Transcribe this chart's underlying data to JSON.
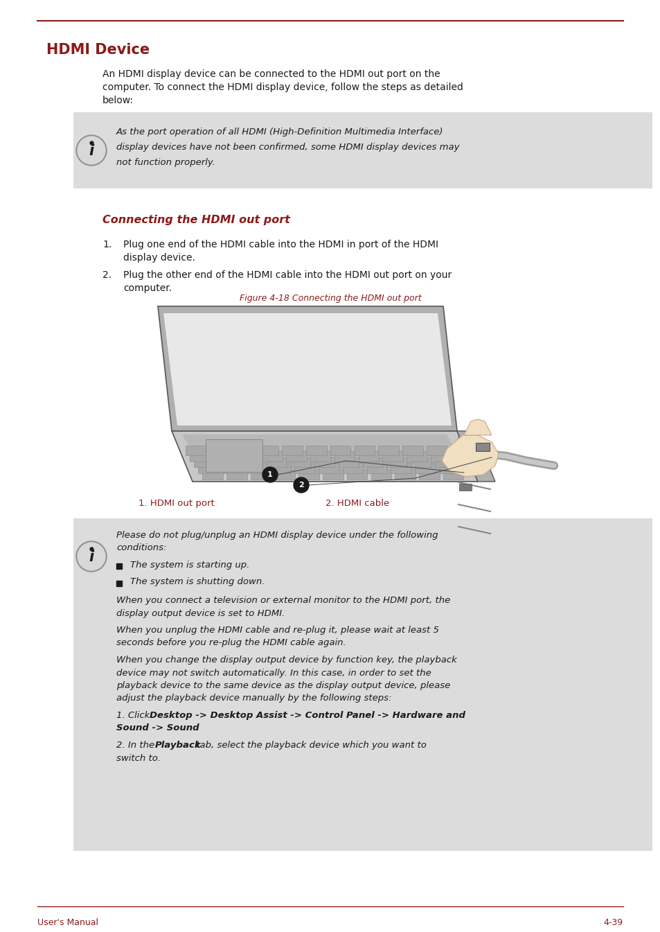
{
  "title": "HDMI Device",
  "title_color": "#8B1A1A",
  "header_line_color": "#8B1A1A",
  "bg_color": "#FFFFFF",
  "body_text_color": "#1A1A1A",
  "info_bg_color": "#DCDCDC",
  "red_color": "#8B1A1A",
  "footer_text": "User's Manual",
  "footer_page": "4-39",
  "intro_lines": [
    "An HDMI display device can be connected to the HDMI out port on the",
    "computer. To connect the HDMI display device, follow the steps as detailed",
    "below:"
  ],
  "box1_lines": [
    "As the port operation of all HDMI (High-Definition Multimedia Interface)",
    "display devices have not been confirmed, some HDMI display devices may",
    "not function properly."
  ],
  "subsection_title": "Connecting the HDMI out port",
  "step1_lines": [
    "Plug one end of the HDMI cable into the HDMI in port of the HDMI",
    "display device."
  ],
  "step2_lines": [
    "Plug the other end of the HDMI cable into the HDMI out port on your",
    "computer."
  ],
  "figure_caption": "Figure 4-18 Connecting the HDMI out port",
  "label1": "1. HDMI out port",
  "label2": "2. HDMI cable",
  "box2_para1_lines": [
    "Please do not plug/unplug an HDMI display device under the following",
    "conditions:"
  ],
  "box2_bullet1": "The system is starting up.",
  "box2_bullet2": "The system is shutting down.",
  "box2_para2_lines": [
    "When you connect a television or external monitor to the HDMI port, the",
    "display output device is set to HDMI."
  ],
  "box2_para3_lines": [
    "When you unplug the HDMI cable and re-plug it, please wait at least 5",
    "seconds before you re-plug the HDMI cable again."
  ],
  "box2_para4_lines": [
    "When you change the display output device by function key, the playback",
    "device may not switch automatically. In this case, in order to set the",
    "playback device to the same device as the display output device, please",
    "adjust the playback device manually by the following steps:"
  ],
  "box2_step1_normal": "1. Click ",
  "box2_step1_bold": "Desktop -> Desktop Assist -> Control Panel -> Hardware and\nSound -> Sound",
  "box2_step1_end": ".",
  "box2_step2_normal1": "2. In the ",
  "box2_step2_bold": "Playback",
  "box2_step2_normal2": " tab, select the playback device which you want to",
  "box2_step2_line2": "switch to."
}
